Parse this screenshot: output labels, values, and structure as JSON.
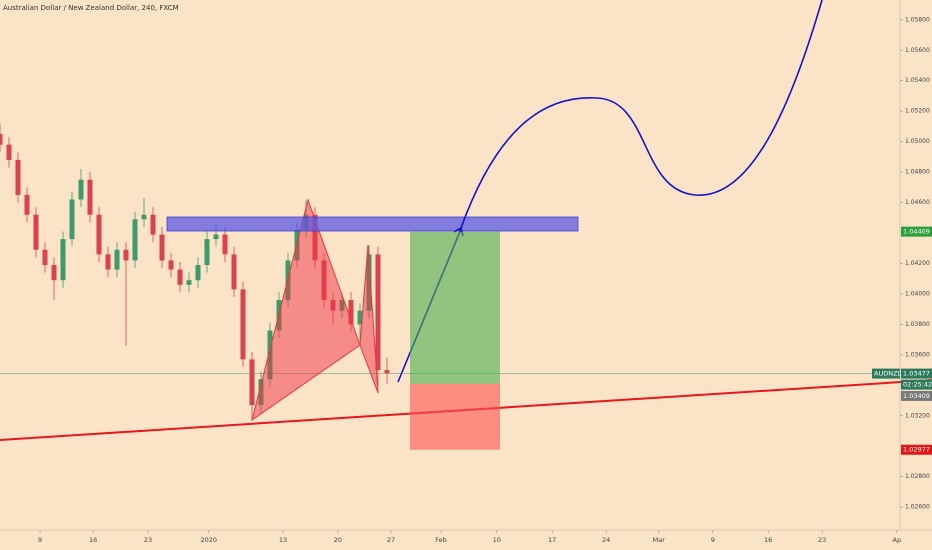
{
  "chart_data": {
    "type": "candlestick",
    "title": "Australian Dollar / New Zealand Dollar, 240, FXCM",
    "x": [
      0,
      2,
      4,
      6,
      8,
      10,
      12,
      14,
      16,
      18,
      20,
      22,
      24,
      26,
      28,
      30,
      32,
      34,
      36,
      38,
      40,
      42,
      44,
      46,
      48,
      50,
      52,
      54,
      56,
      58,
      60,
      62,
      64,
      66,
      68,
      70,
      72,
      74,
      76,
      78,
      80,
      82,
      84,
      86
    ],
    "open": [
      1.0505,
      1.0498,
      1.0488,
      1.0465,
      1.0452,
      1.0429,
      1.0419,
      1.0409,
      1.0436,
      1.0462,
      1.0475,
      1.0452,
      1.0426,
      1.0416,
      1.0429,
      1.0422,
      1.0449,
      1.0452,
      1.0439,
      1.0422,
      1.0416,
      1.0406,
      1.0409,
      1.0419,
      1.0436,
      1.0439,
      1.0426,
      1.0403,
      1.0357,
      1.0327,
      1.0344,
      1.0376,
      1.0396,
      1.0422,
      1.0442,
      1.0452,
      1.0422,
      1.0396,
      1.0389,
      1.0396,
      1.038,
      1.0389,
      1.0426,
      1.035
    ],
    "high": [
      1.0512,
      1.0503,
      1.0493,
      1.047,
      1.0457,
      1.0434,
      1.0424,
      1.0441,
      1.0467,
      1.0482,
      1.048,
      1.0457,
      1.0431,
      1.0434,
      1.0434,
      1.0454,
      1.0463,
      1.0457,
      1.0444,
      1.0427,
      1.0421,
      1.0414,
      1.0424,
      1.0441,
      1.0446,
      1.0444,
      1.0431,
      1.0408,
      1.0362,
      1.0349,
      1.0381,
      1.0401,
      1.0427,
      1.0447,
      1.0462,
      1.0457,
      1.0427,
      1.0401,
      1.0401,
      1.0401,
      1.0394,
      1.0432,
      1.0431,
      1.0358
    ],
    "low": [
      1.0493,
      1.0483,
      1.046,
      1.0447,
      1.0424,
      1.0414,
      1.0396,
      1.0404,
      1.0431,
      1.0457,
      1.0447,
      1.0421,
      1.0411,
      1.0411,
      1.0366,
      1.0417,
      1.0444,
      1.0434,
      1.0417,
      1.0411,
      1.0401,
      1.0401,
      1.0404,
      1.0414,
      1.0431,
      1.0421,
      1.0398,
      1.0352,
      1.0317,
      1.0322,
      1.0339,
      1.0371,
      1.0391,
      1.0417,
      1.0437,
      1.0417,
      1.0391,
      1.038,
      1.0384,
      1.0375,
      1.0368,
      1.0384,
      1.034,
      1.0341
    ],
    "close": [
      1.0498,
      1.0488,
      1.0465,
      1.0452,
      1.0429,
      1.0419,
      1.0409,
      1.0436,
      1.0462,
      1.0475,
      1.0452,
      1.0426,
      1.0416,
      1.0429,
      1.0422,
      1.0449,
      1.0452,
      1.0439,
      1.0422,
      1.0416,
      1.0406,
      1.0409,
      1.0419,
      1.0436,
      1.0439,
      1.0426,
      1.0403,
      1.0357,
      1.0327,
      1.0344,
      1.0376,
      1.0396,
      1.0422,
      1.0442,
      1.0452,
      1.0422,
      1.0396,
      1.0389,
      1.0396,
      1.038,
      1.0389,
      1.0426,
      1.035,
      1.0348
    ],
    "up_color": "#3c9a6b",
    "down_color": "#d9434f",
    "xlim": [
      0,
      200
    ],
    "xticks": [
      {
        "value": 8.9,
        "label": "9"
      },
      {
        "value": 20.7,
        "label": "16"
      },
      {
        "value": 32.9,
        "label": "23"
      },
      {
        "value": 46.4,
        "label": "2020"
      },
      {
        "value": 62.9,
        "label": "13"
      },
      {
        "value": 75.1,
        "label": "20"
      },
      {
        "value": 86.9,
        "label": "27"
      },
      {
        "value": 98,
        "label": "Feb"
      },
      {
        "value": 110.4,
        "label": "10"
      },
      {
        "value": 122.7,
        "label": "17"
      },
      {
        "value": 134.7,
        "label": "24"
      },
      {
        "value": 146.4,
        "label": "Mar"
      },
      {
        "value": 158.4,
        "label": "9"
      },
      {
        "value": 170.7,
        "label": "16"
      },
      {
        "value": 182.7,
        "label": "23"
      },
      {
        "value": 199.3,
        "label": "Ap"
      }
    ],
    "ylim": [
      1.0245,
      1.0593
    ],
    "yticks": [
      {
        "value": 1.058,
        "label": "1.05800"
      },
      {
        "value": 1.056,
        "label": "1.05600"
      },
      {
        "value": 1.054,
        "label": "1.05400"
      },
      {
        "value": 1.052,
        "label": "1.05200"
      },
      {
        "value": 1.05,
        "label": "1.05000"
      },
      {
        "value": 1.048,
        "label": "1.04800"
      },
      {
        "value": 1.046,
        "label": "1.04600"
      },
      {
        "value": 1.042,
        "label": "1.04200"
      },
      {
        "value": 1.04,
        "label": "1.04000"
      },
      {
        "value": 1.038,
        "label": "1.03800"
      },
      {
        "value": 1.036,
        "label": "1.03600"
      },
      {
        "value": 1.032,
        "label": "1.03200"
      },
      {
        "value": 1.028,
        "label": "1.02800"
      },
      {
        "value": 1.026,
        "label": "1.02600"
      }
    ],
    "symbol": "AUDNZD",
    "last_price": 1.03477,
    "countdown": "02:25:42",
    "target": 1.04409,
    "entry": 1.03409,
    "stop": 1.02977
  }
}
